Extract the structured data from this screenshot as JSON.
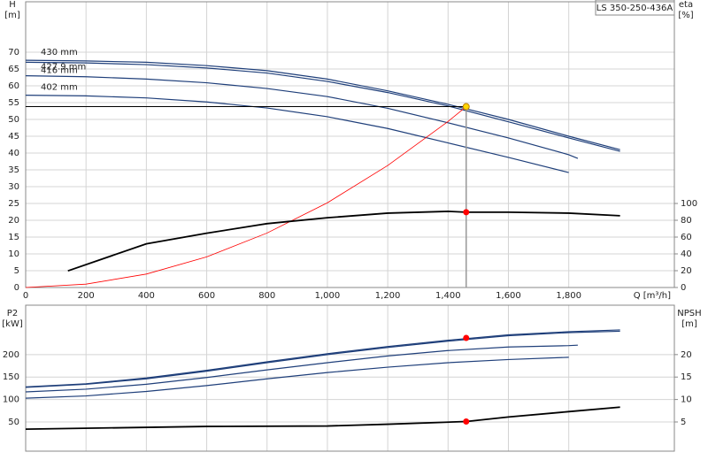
{
  "chart_data": [
    {
      "type": "line",
      "title": "LS 350-250-436A",
      "x_label": "Q [m³/h]",
      "y_label": "H",
      "y_unit": "[m]",
      "y2_label": "eta",
      "y2_unit": "[%]",
      "xlim": [
        0,
        2150
      ],
      "xticks": [
        0,
        200,
        400,
        600,
        800,
        {
          "value": 1000,
          "label": "1,000"
        },
        {
          "value": 1200,
          "label": "1,200"
        },
        {
          "value": 1400,
          "label": "1,400"
        },
        {
          "value": 1600,
          "label": "1,600"
        },
        {
          "value": 1800,
          "label": "1,800"
        }
      ],
      "ylim": [
        0,
        85
      ],
      "yticks": [
        0,
        5,
        10,
        15,
        20,
        25,
        30,
        35,
        40,
        45,
        50,
        55,
        60,
        65,
        70
      ],
      "y2lim": [
        0,
        340
      ],
      "y2ticks": [
        0,
        20,
        40,
        60,
        80,
        100
      ],
      "grid": true,
      "series": [
        {
          "name": "430 mm",
          "color": "#1f3f7a",
          "x": [
            0,
            200,
            400,
            600,
            800,
            1000,
            1200,
            1400,
            1600,
            1800,
            1970
          ],
          "values": [
            67.6,
            67.4,
            67,
            66,
            64.5,
            62,
            58.5,
            54.5,
            50,
            45,
            41
          ]
        },
        {
          "name": "427.9 mm",
          "color": "#1f3f7a",
          "x": [
            0,
            200,
            400,
            600,
            800,
            1000,
            1200,
            1400,
            1600,
            1800,
            1970
          ],
          "values": [
            67,
            66.8,
            66.3,
            65.3,
            63.8,
            61.3,
            58,
            54,
            49.3,
            44.5,
            40.5
          ]
        },
        {
          "name": "416 mm",
          "color": "#1f3f7a",
          "x": [
            0,
            200,
            400,
            600,
            800,
            1000,
            1200,
            1400,
            1600,
            1800,
            1830
          ],
          "values": [
            63,
            62.7,
            62,
            60.9,
            59.2,
            56.8,
            53.3,
            49,
            44.5,
            39.5,
            38.4
          ]
        },
        {
          "name": "402 mm",
          "color": "#1f3f7a",
          "x": [
            0,
            200,
            400,
            600,
            800,
            1000,
            1200,
            1400,
            1600,
            1800
          ],
          "values": [
            57.2,
            57,
            56.4,
            55.2,
            53.4,
            50.8,
            47.3,
            43,
            38.7,
            34.2
          ]
        },
        {
          "color": "#ff0000",
          "x": [
            0,
            200,
            400,
            600,
            800,
            1000,
            1200,
            1400,
            1460
          ],
          "values": [
            0,
            1,
            4,
            9.1,
            16.2,
            25.2,
            36.3,
            49.4,
            53.8
          ]
        },
        {
          "color": "#000000",
          "axis": "y2",
          "x": [
            140,
            400,
            600,
            800,
            1000,
            1200,
            1400,
            1460,
            1600,
            1800,
            1970
          ],
          "values": [
            19.8,
            52,
            64.6,
            76,
            83,
            88.5,
            90.6,
            89.6,
            89.6,
            88.5,
            85.4
          ]
        }
      ],
      "operating_point": {
        "q": 1460,
        "h": 53.8,
        "eta": 89.6
      }
    },
    {
      "type": "line",
      "y_label": "P2",
      "y_unit": "[kW]",
      "y2_label": "NPSH",
      "y2_unit": "[m]",
      "xlim": [
        0,
        2150
      ],
      "ylim": [
        -15,
        310
      ],
      "yticks": [
        50,
        100,
        150,
        200
      ],
      "y2lim": [
        -1.5,
        31
      ],
      "y2ticks": [
        5,
        10,
        15,
        20
      ],
      "grid": true,
      "series": [
        {
          "color": "#1f3f7a",
          "x": [
            0,
            200,
            400,
            600,
            800,
            1000,
            1200,
            1400,
            1600,
            1800,
            1970
          ],
          "values": [
            128,
            135,
            148,
            165,
            184,
            202,
            218,
            232,
            244,
            251,
            255
          ]
        },
        {
          "color": "#1f3f7a",
          "x": [
            0,
            200,
            400,
            600,
            800,
            1000,
            1200,
            1400,
            1600,
            1800,
            1970
          ],
          "values": [
            127,
            134,
            146,
            163,
            182,
            200,
            216,
            230,
            242,
            249,
            252
          ]
        },
        {
          "color": "#1f3f7a",
          "x": [
            0,
            200,
            400,
            600,
            800,
            1000,
            1200,
            1400,
            1600,
            1800,
            1830
          ],
          "values": [
            117,
            123,
            134,
            149,
            166,
            182,
            197,
            209,
            217,
            220,
            221
          ]
        },
        {
          "color": "#1f3f7a",
          "x": [
            0,
            200,
            400,
            600,
            800,
            1000,
            1200,
            1400,
            1600,
            1800
          ],
          "values": [
            103,
            108,
            118,
            131,
            146,
            160,
            172,
            182,
            189,
            194
          ]
        },
        {
          "color": "#000000",
          "axis": "y2",
          "x": [
            0,
            600,
            1000,
            1200,
            1460,
            1600,
            1800,
            1970
          ],
          "values": [
            3.4,
            4,
            4.1,
            4.5,
            5.1,
            6.1,
            7.3,
            8.3
          ]
        }
      ],
      "operating_point": {
        "q": 1460,
        "p2": 237,
        "npsh": 5.1
      }
    }
  ]
}
